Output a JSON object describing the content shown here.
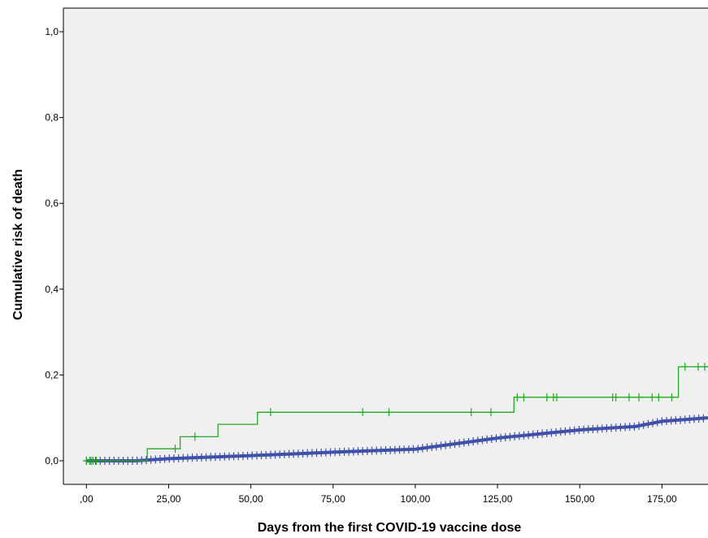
{
  "chart_data": {
    "type": "line",
    "title": "",
    "xlabel": "Days from the  first COVID-19 vaccine dose",
    "ylabel": "Cumulative risk of death",
    "xlim": [
      -7,
      189
    ],
    "ylim": [
      -0.055,
      1.055
    ],
    "x_ticks": [
      {
        "value": 0,
        "label": ",00"
      },
      {
        "value": 25,
        "label": "25,00"
      },
      {
        "value": 50,
        "label": "50,00"
      },
      {
        "value": 75,
        "label": "75,00"
      },
      {
        "value": 100,
        "label": "100,00"
      },
      {
        "value": 125,
        "label": "125,00"
      },
      {
        "value": 150,
        "label": "150,00"
      },
      {
        "value": 175,
        "label": "175,00"
      }
    ],
    "y_ticks": [
      {
        "value": 0.0,
        "label": "0,0"
      },
      {
        "value": 0.2,
        "label": "0,2"
      },
      {
        "value": 0.4,
        "label": "0,4"
      },
      {
        "value": 0.6,
        "label": "0,6"
      },
      {
        "value": 0.8,
        "label": "0,8"
      },
      {
        "value": 1.0,
        "label": "1,0"
      }
    ],
    "grid": false,
    "background": "#f0f0f0",
    "series": [
      {
        "color": "#22aa22",
        "step": true,
        "steps": [
          {
            "x": 0,
            "y": 0.0
          },
          {
            "x": 18.5,
            "y": 0.028
          },
          {
            "x": 28.5,
            "y": 0.056
          },
          {
            "x": 40,
            "y": 0.085
          },
          {
            "x": 52,
            "y": 0.113
          },
          {
            "x": 130,
            "y": 0.148
          },
          {
            "x": 180,
            "y": 0.219
          },
          {
            "x": 189,
            "y": 0.219
          }
        ],
        "censor": [
          0,
          1,
          2,
          3,
          27,
          33,
          56,
          84,
          92,
          117,
          123,
          131,
          133,
          140,
          142,
          143,
          160,
          161,
          165,
          168,
          172,
          174,
          178,
          182,
          186,
          188
        ]
      },
      {
        "color": "#3f51a8",
        "step": false,
        "points": [
          {
            "x": 0,
            "y": 0.0
          },
          {
            "x": 15,
            "y": 0.0
          },
          {
            "x": 25,
            "y": 0.005
          },
          {
            "x": 50,
            "y": 0.012
          },
          {
            "x": 75,
            "y": 0.02
          },
          {
            "x": 100,
            "y": 0.027
          },
          {
            "x": 125,
            "y": 0.053
          },
          {
            "x": 150,
            "y": 0.072
          },
          {
            "x": 167,
            "y": 0.08
          },
          {
            "x": 175,
            "y": 0.092
          },
          {
            "x": 189,
            "y": 0.1
          }
        ],
        "censor_every": 1.4
      }
    ]
  }
}
